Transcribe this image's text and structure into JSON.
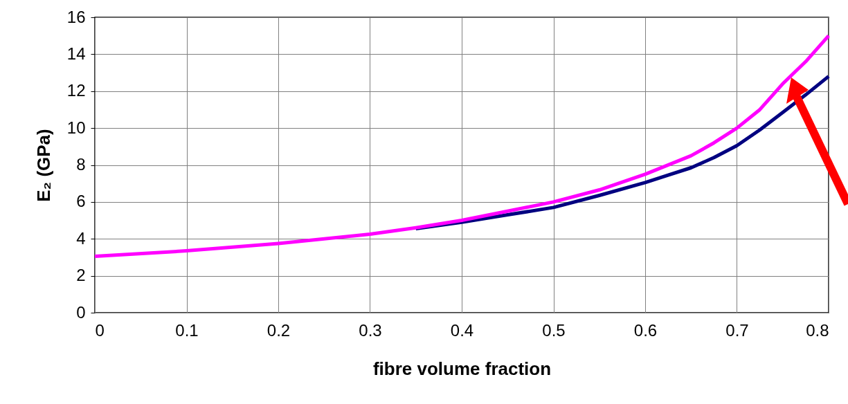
{
  "chart_data": {
    "type": "line",
    "xlabel": "fibre volume fraction",
    "ylabel": "E₂ (GPa)",
    "x": [
      0,
      0.1,
      0.2,
      0.3,
      0.35,
      0.4,
      0.45,
      0.5,
      0.55,
      0.6,
      0.65,
      0.675,
      0.7,
      0.725,
      0.75,
      0.775,
      0.8
    ],
    "series": [
      {
        "color": "#000080",
        "values": [
          null,
          null,
          null,
          null,
          4.55,
          4.9,
          5.3,
          5.7,
          6.35,
          7.05,
          7.85,
          8.4,
          9.05,
          9.9,
          10.85,
          11.8,
          12.8
        ]
      },
      {
        "color": "#ff00ff",
        "values": [
          3.05,
          3.35,
          3.75,
          4.25,
          4.6,
          5.0,
          5.5,
          6.0,
          6.65,
          7.5,
          8.5,
          9.2,
          10.0,
          11.0,
          12.4,
          13.6,
          15.0
        ]
      }
    ],
    "xlim": [
      0,
      0.8
    ],
    "xticks": [
      0,
      0.1,
      0.2,
      0.3,
      0.4,
      0.5,
      0.6,
      0.7,
      0.8
    ],
    "ylim": [
      0,
      16
    ],
    "yticks": [
      0,
      2,
      4,
      6,
      8,
      10,
      12,
      14,
      16
    ],
    "grid": true,
    "legend": false,
    "marker": "none",
    "line_style": "solid"
  }
}
